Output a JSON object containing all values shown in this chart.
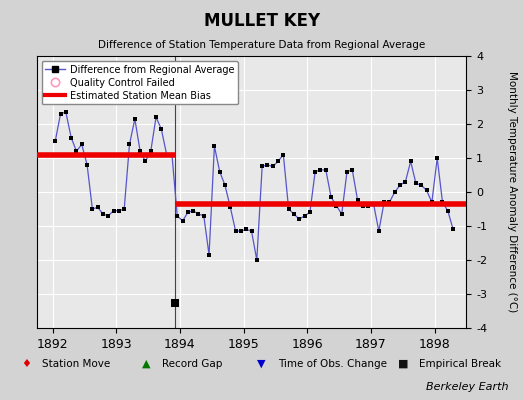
{
  "title": "MULLET KEY",
  "subtitle": "Difference of Station Temperature Data from Regional Average",
  "ylabel": "Monthly Temperature Anomaly Difference (°C)",
  "xlabel_credit": "Berkeley Earth",
  "bg_color": "#d3d3d3",
  "plot_bg_color": "#e8e8e8",
  "ylim": [
    -4,
    4
  ],
  "xlim_start": 1891.75,
  "xlim_end": 1898.5,
  "grid_color": "#ffffff",
  "line_color": "#5555cc",
  "marker_color": "#000000",
  "bias_color": "#ee0000",
  "segment1_x_start": 1891.75,
  "segment1_x_end": 1893.917,
  "segment1_bias": 1.1,
  "segment2_x_start": 1893.917,
  "segment2_x_end": 1898.5,
  "segment2_bias": -0.35,
  "break_x": 1893.917,
  "break_y": -3.25,
  "xticks": [
    1892,
    1893,
    1894,
    1895,
    1896,
    1897,
    1898
  ],
  "yticks": [
    -4,
    -3,
    -2,
    -1,
    0,
    1,
    2,
    3,
    4
  ],
  "data": [
    [
      1892.042,
      1.5
    ],
    [
      1892.125,
      2.3
    ],
    [
      1892.208,
      2.35
    ],
    [
      1892.292,
      1.6
    ],
    [
      1892.375,
      1.2
    ],
    [
      1892.458,
      1.4
    ],
    [
      1892.542,
      0.8
    ],
    [
      1892.625,
      -0.5
    ],
    [
      1892.708,
      -0.45
    ],
    [
      1892.792,
      -0.65
    ],
    [
      1892.875,
      -0.7
    ],
    [
      1892.958,
      -0.55
    ],
    [
      1893.042,
      -0.55
    ],
    [
      1893.125,
      -0.5
    ],
    [
      1893.208,
      1.4
    ],
    [
      1893.292,
      2.15
    ],
    [
      1893.375,
      1.2
    ],
    [
      1893.458,
      0.9
    ],
    [
      1893.542,
      1.2
    ],
    [
      1893.625,
      2.2
    ],
    [
      1893.708,
      1.85
    ],
    [
      1893.792,
      1.1
    ],
    [
      1893.875,
      1.1
    ],
    [
      1893.958,
      -0.7
    ],
    [
      1894.042,
      -0.85
    ],
    [
      1894.125,
      -0.6
    ],
    [
      1894.208,
      -0.55
    ],
    [
      1894.292,
      -0.65
    ],
    [
      1894.375,
      -0.7
    ],
    [
      1894.458,
      -1.85
    ],
    [
      1894.542,
      1.35
    ],
    [
      1894.625,
      0.6
    ],
    [
      1894.708,
      0.2
    ],
    [
      1894.792,
      -0.45
    ],
    [
      1894.875,
      -1.15
    ],
    [
      1894.958,
      -1.15
    ],
    [
      1895.042,
      -1.1
    ],
    [
      1895.125,
      -1.15
    ],
    [
      1895.208,
      -2.0
    ],
    [
      1895.292,
      0.75
    ],
    [
      1895.375,
      0.8
    ],
    [
      1895.458,
      0.75
    ],
    [
      1895.542,
      0.9
    ],
    [
      1895.625,
      1.1
    ],
    [
      1895.708,
      -0.5
    ],
    [
      1895.792,
      -0.65
    ],
    [
      1895.875,
      -0.8
    ],
    [
      1895.958,
      -0.7
    ],
    [
      1896.042,
      -0.6
    ],
    [
      1896.125,
      0.6
    ],
    [
      1896.208,
      0.65
    ],
    [
      1896.292,
      0.65
    ],
    [
      1896.375,
      -0.15
    ],
    [
      1896.458,
      -0.4
    ],
    [
      1896.542,
      -0.65
    ],
    [
      1896.625,
      0.6
    ],
    [
      1896.708,
      0.65
    ],
    [
      1896.792,
      -0.25
    ],
    [
      1896.875,
      -0.4
    ],
    [
      1896.958,
      -0.4
    ],
    [
      1897.042,
      -0.35
    ],
    [
      1897.125,
      -1.15
    ],
    [
      1897.208,
      -0.3
    ],
    [
      1897.292,
      -0.3
    ],
    [
      1897.375,
      0.0
    ],
    [
      1897.458,
      0.2
    ],
    [
      1897.542,
      0.3
    ],
    [
      1897.625,
      0.9
    ],
    [
      1897.708,
      0.25
    ],
    [
      1897.792,
      0.2
    ],
    [
      1897.875,
      0.05
    ],
    [
      1897.958,
      -0.3
    ],
    [
      1898.042,
      1.0
    ],
    [
      1898.125,
      -0.3
    ],
    [
      1898.208,
      -0.55
    ],
    [
      1898.292,
      -1.1
    ]
  ]
}
